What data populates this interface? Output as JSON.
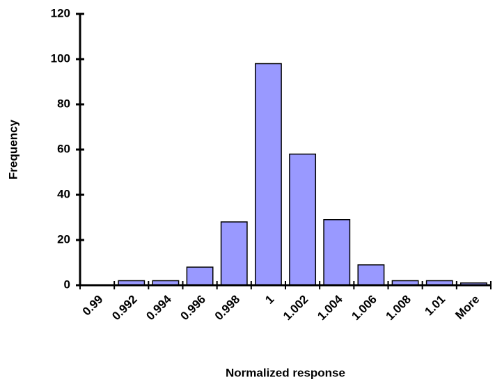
{
  "chart_data": {
    "type": "bar",
    "x_label": "Normalized response",
    "y_label": "Frequency",
    "categories": [
      "0.99",
      "0.992",
      "0.994",
      "0.996",
      "0.998",
      "1",
      "1.002",
      "1.004",
      "1.006",
      "1.008",
      "1.01",
      "More"
    ],
    "values": [
      0,
      2,
      2,
      8,
      28,
      98,
      58,
      29,
      9,
      2,
      2,
      1
    ],
    "color": "#9999ff",
    "ylim": [
      0,
      120
    ],
    "yticks": [
      0,
      20,
      40,
      60,
      80,
      100,
      120
    ]
  }
}
